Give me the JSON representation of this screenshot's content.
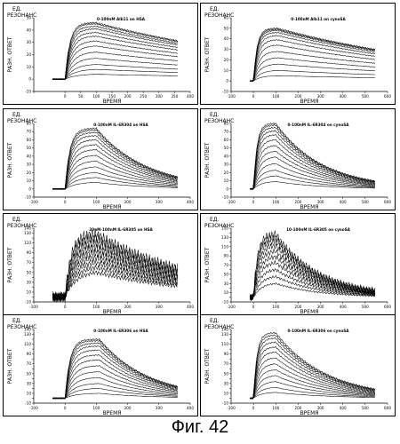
{
  "figure_caption": "Фиг. 42",
  "panel_common": {
    "ylabel_units": "ЕД.",
    "ylabel_top": "РЕЗОНАНС",
    "ylabel_side": "РАЗН. ОТВЕТ",
    "xlabel": "ВРЕМЯ"
  },
  "chart_data": [
    {
      "type": "line",
      "title": "0-100nM Alb11 on HSA",
      "xlim": [
        -100,
        400
      ],
      "ylim": [
        -10,
        50
      ],
      "xticks": [
        -100,
        0,
        50,
        100,
        150,
        200,
        250,
        300,
        350,
        400
      ],
      "xtick_labels": [
        "",
        "0",
        "50",
        "100",
        "150",
        "200",
        "250",
        "300",
        "350",
        "400"
      ],
      "yticks": [
        -10,
        0,
        10,
        20,
        30,
        40,
        50
      ],
      "inject_start": 0,
      "inject_end": 100,
      "peaks": [
        4,
        8,
        12,
        17,
        22,
        27,
        31,
        35,
        38,
        41,
        43,
        45,
        46
      ],
      "end_fraction": 0.68,
      "noise": 0.004
    },
    {
      "type": "line",
      "title": "0-100nM Alb11 on cynoSA",
      "xlim": [
        -100,
        600
      ],
      "ylim": [
        -10,
        60
      ],
      "xticks": [
        -100,
        0,
        100,
        200,
        300,
        400,
        500,
        600
      ],
      "xtick_labels": [
        "-100",
        "0",
        "100",
        "200",
        "300",
        "400",
        "500",
        "600"
      ],
      "yticks": [
        -10,
        0,
        10,
        20,
        30,
        40,
        50,
        60
      ],
      "inject_start": 0,
      "inject_end": 110,
      "peaks": [
        5,
        10,
        16,
        22,
        28,
        34,
        39,
        43,
        46,
        48,
        49,
        50
      ],
      "end_fraction": 0.6,
      "noise": 0.004
    },
    {
      "type": "line",
      "title": "0-100nM IL-6R304 on HSA",
      "xlim": [
        -100,
        400
      ],
      "ylim": [
        -10,
        80
      ],
      "xticks": [
        -100,
        0,
        100,
        200,
        300,
        400
      ],
      "xtick_labels": [
        "-100",
        "0",
        "100",
        "200",
        "300",
        "400"
      ],
      "yticks": [
        -10,
        0,
        10,
        20,
        30,
        40,
        50,
        60,
        70,
        80
      ],
      "inject_start": 0,
      "inject_end": 100,
      "peaks": [
        8,
        14,
        20,
        27,
        34,
        41,
        48,
        54,
        60,
        65,
        69,
        72,
        74
      ],
      "end_fraction": 0.2,
      "noise": 0.004
    },
    {
      "type": "line",
      "title": "0-100nM IL-6R304 on cynoSA",
      "xlim": [
        -100,
        600
      ],
      "ylim": [
        -10,
        80
      ],
      "xticks": [
        -100,
        0,
        100,
        200,
        300,
        400,
        500,
        600
      ],
      "xtick_labels": [
        "-100",
        "0",
        "100",
        "200",
        "300",
        "400",
        "500",
        "600"
      ],
      "yticks": [
        -10,
        0,
        10,
        20,
        30,
        40,
        50,
        60,
        70,
        80
      ],
      "inject_start": 0,
      "inject_end": 100,
      "peaks": [
        9,
        16,
        23,
        31,
        39,
        46,
        53,
        60,
        66,
        71,
        75,
        78,
        80
      ],
      "end_fraction": 0.12,
      "noise": 0.004
    },
    {
      "type": "line",
      "title": "20nM-100nM IL-6R305 on HSA",
      "xlim": [
        -100,
        400
      ],
      "ylim": [
        -10,
        140
      ],
      "xticks": [
        -100,
        0,
        100,
        200,
        300,
        400
      ],
      "xtick_labels": [
        "-100",
        "0",
        "100",
        "200",
        "300",
        "400"
      ],
      "yticks": [
        -10,
        0,
        10,
        20,
        30,
        40,
        50,
        60,
        70,
        80,
        90,
        100,
        110,
        120,
        130,
        140
      ],
      "inject_start": 0,
      "inject_end": 100,
      "peaks": [
        50,
        60,
        70,
        80,
        90,
        100,
        110,
        120,
        128
      ],
      "end_fraction": 0.45,
      "noise": 0.03
    },
    {
      "type": "line",
      "title": "10-100nM IL-6R305 on cynoSA",
      "xlim": [
        -100,
        600
      ],
      "ylim": [
        -10,
        150
      ],
      "xticks": [
        -100,
        0,
        100,
        200,
        300,
        400,
        500,
        600
      ],
      "xtick_labels": [
        "-100",
        "0",
        "100",
        "200",
        "300",
        "400",
        "500",
        "600"
      ],
      "yticks": [
        -10,
        0,
        10,
        20,
        30,
        40,
        50,
        60,
        70,
        80,
        90,
        100,
        110,
        120,
        130,
        140,
        150
      ],
      "inject_start": 0,
      "inject_end": 100,
      "peaks": [
        30,
        45,
        60,
        75,
        88,
        100,
        112,
        122,
        130,
        137
      ],
      "end_fraction": 0.1,
      "noise": 0.02
    },
    {
      "type": "line",
      "title": "0-100nM IL-6R306 on HSA",
      "xlim": [
        -100,
        400
      ],
      "ylim": [
        -10,
        140
      ],
      "xticks": [
        -100,
        0,
        100,
        200,
        300,
        400
      ],
      "xtick_labels": [
        "-100",
        "0",
        "100",
        "200",
        "300",
        "400"
      ],
      "yticks": [
        -10,
        0,
        10,
        20,
        30,
        40,
        50,
        60,
        70,
        80,
        90,
        100,
        110,
        120,
        130,
        140
      ],
      "inject_start": 0,
      "inject_end": 110,
      "peaks": [
        10,
        20,
        30,
        42,
        54,
        66,
        78,
        88,
        98,
        106,
        112,
        117,
        120
      ],
      "end_fraction": 0.2,
      "noise": 0.004
    },
    {
      "type": "line",
      "title": "0-100nM IL-6R306 on cynoSA",
      "xlim": [
        -100,
        600
      ],
      "ylim": [
        -10,
        140
      ],
      "xticks": [
        -100,
        0,
        100,
        200,
        300,
        400,
        500,
        600
      ],
      "xtick_labels": [
        "-100",
        "0",
        "100",
        "200",
        "300",
        "400",
        "500",
        "600"
      ],
      "yticks": [
        -10,
        0,
        10,
        20,
        30,
        40,
        50,
        60,
        70,
        80,
        90,
        100,
        110,
        120,
        130,
        140
      ],
      "inject_start": 0,
      "inject_end": 100,
      "peaks": [
        12,
        22,
        34,
        46,
        58,
        70,
        82,
        94,
        104,
        114,
        122,
        128,
        133
      ],
      "end_fraction": 0.14,
      "noise": 0.004
    }
  ]
}
